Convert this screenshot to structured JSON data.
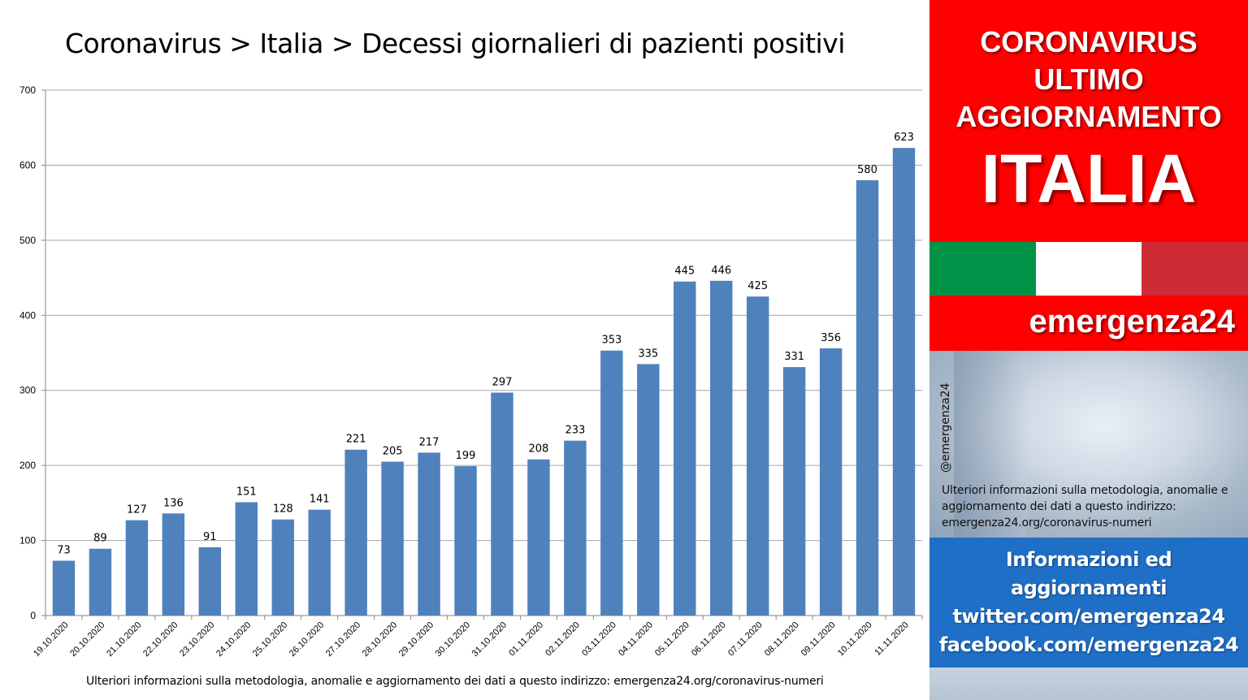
{
  "chart_data": {
    "type": "bar",
    "title": "Coronavirus > Italia > Decessi giornalieri di pazienti positivi",
    "categories": [
      "19.10.2020",
      "20.10.2020",
      "21.10.2020",
      "22.10.2020",
      "23.10.2020",
      "24.10.2020",
      "25.10.2020",
      "26.10.2020",
      "27.10.2020",
      "28.10.2020",
      "29.10.2020",
      "30.10.2020",
      "31.10.2020",
      "01.11.2020",
      "02.11.2020",
      "03.11.2020",
      "04.11.2020",
      "05.11.2020",
      "06.11.2020",
      "07.11.2020",
      "08.11.2020",
      "09.11.2020",
      "10.11.2020",
      "11.11.2020"
    ],
    "values": [
      73,
      89,
      127,
      136,
      91,
      151,
      128,
      141,
      221,
      205,
      217,
      199,
      297,
      208,
      233,
      353,
      335,
      445,
      446,
      425,
      331,
      356,
      580,
      623
    ],
    "xlabel": "",
    "ylabel": "",
    "ylim": [
      0,
      700
    ],
    "yticks": [
      0,
      100,
      200,
      300,
      400,
      500,
      600,
      700
    ],
    "grid": true,
    "bar_color": "#4f81bd",
    "data_labels": true
  },
  "chart_footer": "Ulteriori informazioni sulla metodologia, anomalie e aggiornamento dei dati a questo indirizzo: emergenza24.org/coronavirus-numeri",
  "sidebar": {
    "banner": {
      "line1": "CORONAVIRUS",
      "line2": "ULTIMO",
      "line3": "AGGIORNAMENTO",
      "country": "ITALIA",
      "color": "#ff0000"
    },
    "flag_colors": [
      "#009246",
      "#ffffff",
      "#ce2b37"
    ],
    "brand": "emergenza24",
    "handle": "@emergenza24",
    "note": "Ulteriori informazioni sulla metodologia, anomalie e aggiornamento dei dati a questo indirizzo: emergenza24.org/coronavirus-numeri",
    "info": {
      "line1": "Informazioni ed",
      "line2": "aggiornamenti",
      "line3": "twitter.com/emergenza24",
      "line4": "facebook.com/emergenza24",
      "color": "#1f6fc6"
    }
  }
}
